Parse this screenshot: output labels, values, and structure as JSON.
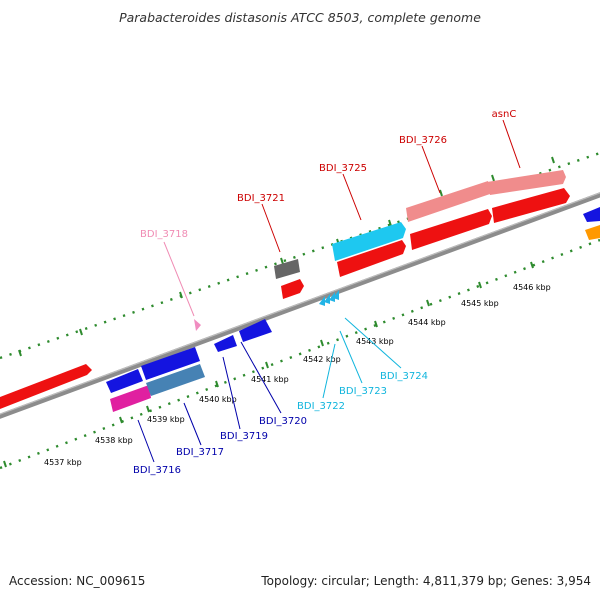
{
  "title": "Parabacteroides distasonis ATCC 8503, complete genome",
  "footer": {
    "accession": "Accession: NC_009615",
    "topology": "Topology: circular; Length: 4,811,379 bp; Genes: 3,954"
  },
  "colors": {
    "backbone": "#8c8c8c",
    "tick_dots": "#2e8b2e",
    "forward_cds": "#ee1111",
    "forward_cds_light": "#f08c8c",
    "forward_other": "#1ec8f0",
    "forward_grey": "#666666",
    "forward_pink": "#f08cc0",
    "reverse_blue": "#1414e0",
    "reverse_steel": "#4682b4",
    "reverse_magenta": "#e020a0",
    "reverse_orange": "#ff9900",
    "reverse_rna": "#22b4e6",
    "label_red": "#cc0000",
    "label_pink": "#f08cb4",
    "label_navy": "#0000aa",
    "label_cyan": "#11b5dd"
  },
  "scale_labels": [
    "4537 kbp",
    "4538 kbp",
    "4539 kbp",
    "4540 kbp",
    "4541 kbp",
    "4542 kbp",
    "4543 kbp",
    "4544 kbp",
    "4545 kbp",
    "4546 kbp"
  ],
  "gene_labels": {
    "forward": [
      "BDI_3718",
      "BDI_3721",
      "BDI_3725",
      "BDI_3726",
      "asnC"
    ],
    "reverse": [
      "BDI_3716",
      "BDI_3717",
      "BDI_3719",
      "BDI_3720",
      "BDI_3722",
      "BDI_3723",
      "BDI_3724"
    ]
  }
}
